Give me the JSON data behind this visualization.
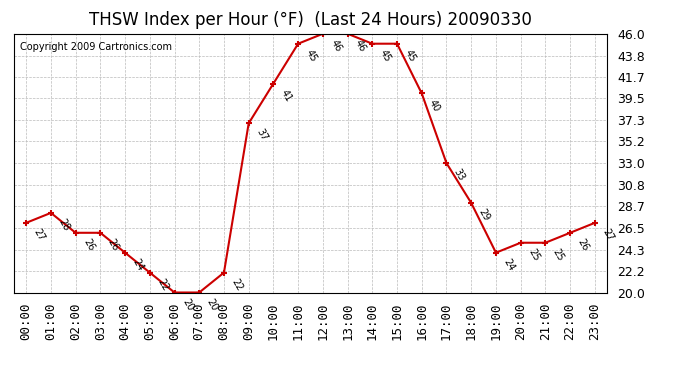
{
  "title": "THSW Index per Hour (°F)  (Last 24 Hours) 20090330",
  "copyright": "Copyright 2009 Cartronics.com",
  "hours": [
    "00:00",
    "01:00",
    "02:00",
    "03:00",
    "04:00",
    "05:00",
    "06:00",
    "07:00",
    "08:00",
    "09:00",
    "10:00",
    "11:00",
    "12:00",
    "13:00",
    "14:00",
    "15:00",
    "16:00",
    "17:00",
    "18:00",
    "19:00",
    "20:00",
    "21:00",
    "22:00",
    "23:00"
  ],
  "values": [
    27,
    28,
    26,
    26,
    24,
    22,
    20,
    20,
    22,
    37,
    41,
    45,
    46,
    46,
    45,
    45,
    40,
    33,
    29,
    24,
    25,
    25,
    26,
    27
  ],
  "ylim": [
    20.0,
    46.0
  ],
  "yticks": [
    20.0,
    22.2,
    24.3,
    26.5,
    28.7,
    30.8,
    33.0,
    35.2,
    37.3,
    39.5,
    41.7,
    43.8,
    46.0
  ],
  "line_color": "#cc0000",
  "marker_color": "#cc0000",
  "bg_color": "#ffffff",
  "plot_bg_color": "#ffffff",
  "grid_color": "#bbbbbb",
  "title_fontsize": 12,
  "tick_fontsize": 9,
  "copyright_fontsize": 7,
  "label_fontsize": 7
}
